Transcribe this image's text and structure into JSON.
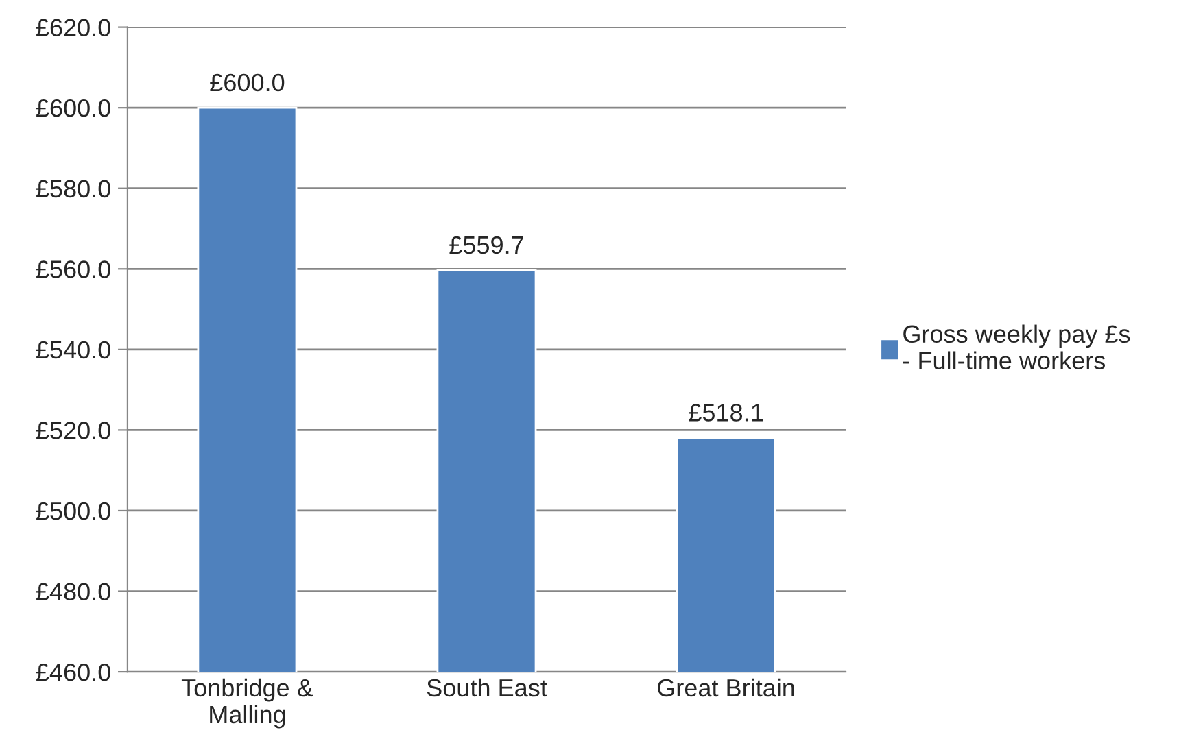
{
  "chart_data": {
    "type": "bar",
    "categories": [
      "Tonbridge & Malling",
      "South East",
      "Great Britain"
    ],
    "series": [
      {
        "name": "Gross weekly pay £s - Full-time workers",
        "color": "#4f81bd",
        "values": [
          600.0,
          559.7,
          518.1
        ],
        "value_labels": [
          "£600.0",
          "£559.7",
          "£518.1"
        ]
      }
    ],
    "ylim": [
      460,
      620
    ],
    "yticks": [
      {
        "value": 460,
        "label": "£460.0"
      },
      {
        "value": 480,
        "label": "£480.0"
      },
      {
        "value": 500,
        "label": "£500.0"
      },
      {
        "value": 520,
        "label": "£520.0"
      },
      {
        "value": 540,
        "label": "£540.0"
      },
      {
        "value": 560,
        "label": "£560.0"
      },
      {
        "value": 580,
        "label": "£580.0"
      },
      {
        "value": 600,
        "label": "£600.0"
      },
      {
        "value": 620,
        "label": "£620.0"
      }
    ],
    "grid": "y",
    "legend": "right"
  }
}
